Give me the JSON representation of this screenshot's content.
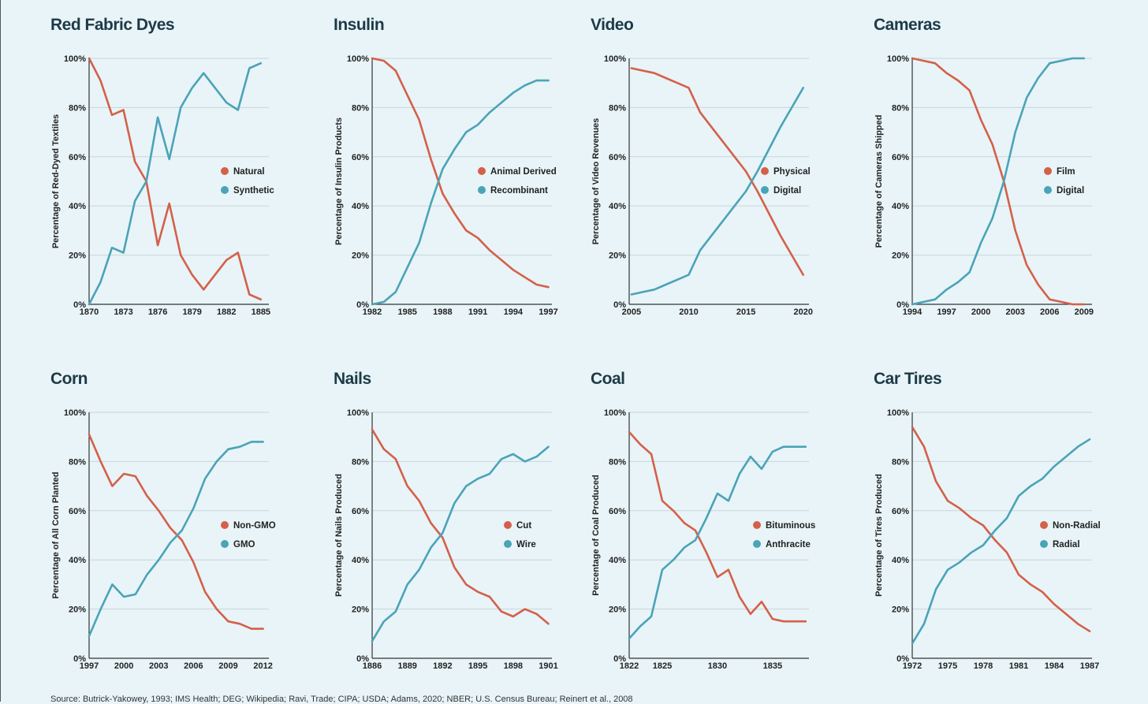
{
  "colors": {
    "series_a": "#d4604a",
    "series_b": "#4ba3b8",
    "grid": "#c9d6da",
    "axis": "#333333"
  },
  "footer": {
    "text": "Source: Butrick-Yakowey, 1993; IMS Health; DEG; Wikipedia; Ravi, Trade; CIPA; USDA; Adams, 2020; NBER; U.S. Census Bureau; Reinert et al., 2008"
  },
  "chart_data": [
    {
      "type": "line",
      "title": "Red Fabric Dyes",
      "ylabel": "Percentage of Red-Dyed Textiles",
      "xlim": [
        1870,
        1885.7
      ],
      "ylim": [
        0,
        100
      ],
      "xticks": [
        1870,
        1873,
        1876,
        1879,
        1882,
        1885
      ],
      "yticks": [
        "0%",
        "20%",
        "40%",
        "60%",
        "80%",
        "100%"
      ],
      "series": [
        {
          "name": "Natural",
          "x": [
            1870,
            1871,
            1872,
            1873,
            1874,
            1875,
            1876,
            1877,
            1878,
            1879,
            1880,
            1881,
            1882,
            1883,
            1884,
            1885
          ],
          "values": [
            100,
            91,
            77,
            79,
            58,
            50,
            24,
            41,
            20,
            12,
            6,
            12,
            18,
            21,
            4,
            2
          ]
        },
        {
          "name": "Synthetic",
          "x": [
            1870,
            1871,
            1872,
            1873,
            1874,
            1875,
            1876,
            1877,
            1878,
            1879,
            1880,
            1881,
            1882,
            1883,
            1884,
            1885
          ],
          "values": [
            0,
            9,
            23,
            21,
            42,
            50,
            76,
            59,
            80,
            88,
            94,
            88,
            82,
            79,
            96,
            98
          ]
        }
      ]
    },
    {
      "type": "line",
      "title": "Insulin",
      "ylabel": "Percentage of Insulin Products",
      "xlim": [
        1982,
        1997.3
      ],
      "ylim": [
        0,
        100
      ],
      "xticks": [
        1982,
        1985,
        1988,
        1991,
        1994,
        1997
      ],
      "yticks": [
        "0%",
        "20%",
        "40%",
        "60%",
        "80%",
        "100%"
      ],
      "series": [
        {
          "name": "Animal Derived",
          "x": [
            1982,
            1983,
            1984,
            1985,
            1986,
            1987,
            1988,
            1989,
            1990,
            1991,
            1992,
            1993,
            1994,
            1995,
            1996,
            1997
          ],
          "values": [
            100,
            99,
            95,
            85,
            75,
            59,
            45,
            37,
            30,
            27,
            22,
            18,
            14,
            11,
            8,
            7
          ]
        },
        {
          "name": "Recombinant",
          "x": [
            1982,
            1983,
            1984,
            1985,
            1986,
            1987,
            1988,
            1989,
            1990,
            1991,
            1992,
            1993,
            1994,
            1995,
            1996,
            1997
          ],
          "values": [
            0,
            1,
            5,
            15,
            25,
            41,
            55,
            63,
            70,
            73,
            78,
            82,
            86,
            89,
            91,
            91
          ]
        }
      ]
    },
    {
      "type": "line",
      "title": "Video",
      "ylabel": "Percentage of Video Revenues",
      "xlim": [
        2004.8,
        2020.5
      ],
      "ylim": [
        0,
        100
      ],
      "xticks": [
        2005,
        2010,
        2015,
        2020
      ],
      "yticks": [
        "0%",
        "20%",
        "40%",
        "60%",
        "80%",
        "100%"
      ],
      "series": [
        {
          "name": "Physical",
          "x": [
            2005,
            2006,
            2007,
            2008,
            2009,
            2010,
            2011,
            2012,
            2013,
            2014,
            2015,
            2016,
            2017,
            2018,
            2019,
            2020
          ],
          "values": [
            96,
            95,
            94,
            92,
            90,
            88,
            78,
            72,
            66,
            60,
            54,
            46,
            37,
            28,
            20,
            12
          ]
        },
        {
          "name": "Digital",
          "x": [
            2005,
            2006,
            2007,
            2008,
            2009,
            2010,
            2011,
            2012,
            2013,
            2014,
            2015,
            2016,
            2017,
            2018,
            2019,
            2020
          ],
          "values": [
            4,
            5,
            6,
            8,
            10,
            12,
            22,
            28,
            34,
            40,
            46,
            54,
            63,
            72,
            80,
            88
          ]
        }
      ]
    },
    {
      "type": "line",
      "title": "Cameras",
      "ylabel": "Percentage of Cameras Shipped",
      "xlim": [
        1994,
        2009.7
      ],
      "ylim": [
        0,
        100
      ],
      "xticks": [
        1994,
        1997,
        2000,
        2003,
        2006,
        2009
      ],
      "yticks": [
        "0%",
        "20%",
        "40%",
        "60%",
        "80%",
        "100%"
      ],
      "series": [
        {
          "name": "Film",
          "x": [
            1994,
            1995,
            1996,
            1997,
            1998,
            1999,
            2000,
            2001,
            2002,
            2003,
            2004,
            2005,
            2006,
            2007,
            2008,
            2009
          ],
          "values": [
            100,
            99,
            98,
            94,
            91,
            87,
            75,
            65,
            50,
            30,
            16,
            8,
            2,
            1,
            0,
            0
          ]
        },
        {
          "name": "Digital",
          "x": [
            1994,
            1995,
            1996,
            1997,
            1998,
            1999,
            2000,
            2001,
            2002,
            2003,
            2004,
            2005,
            2006,
            2007,
            2008,
            2009
          ],
          "values": [
            0,
            1,
            2,
            6,
            9,
            13,
            25,
            35,
            50,
            70,
            84,
            92,
            98,
            99,
            100,
            100
          ]
        }
      ]
    },
    {
      "type": "line",
      "title": "Corn",
      "ylabel": "Percentage of All Corn Planted",
      "xlim": [
        1997,
        2012.5
      ],
      "ylim": [
        0,
        100
      ],
      "xticks": [
        1997,
        2000,
        2003,
        2006,
        2009,
        2012
      ],
      "yticks": [
        "0%",
        "20%",
        "40%",
        "60%",
        "80%",
        "100%"
      ],
      "series": [
        {
          "name": "Non-GMO",
          "x": [
            1997,
            1998,
            1999,
            2000,
            2001,
            2002,
            2003,
            2004,
            2005,
            2006,
            2007,
            2008,
            2009,
            2010,
            2011,
            2012
          ],
          "values": [
            91,
            80,
            70,
            75,
            74,
            66,
            60,
            53,
            48,
            39,
            27,
            20,
            15,
            14,
            12,
            12
          ]
        },
        {
          "name": "GMO",
          "x": [
            1997,
            1998,
            1999,
            2000,
            2001,
            2002,
            2003,
            2004,
            2005,
            2006,
            2007,
            2008,
            2009,
            2010,
            2011,
            2012
          ],
          "values": [
            9,
            20,
            30,
            25,
            26,
            34,
            40,
            47,
            52,
            61,
            73,
            80,
            85,
            86,
            88,
            88
          ]
        }
      ]
    },
    {
      "type": "line",
      "title": "Nails",
      "ylabel": "Percentage of Nails Produced",
      "xlim": [
        1886,
        1901.3
      ],
      "ylim": [
        0,
        100
      ],
      "xticks": [
        1886,
        1889,
        1892,
        1895,
        1898,
        1901
      ],
      "yticks": [
        "0%",
        "20%",
        "40%",
        "60%",
        "80%",
        "100%"
      ],
      "series": [
        {
          "name": "Cut",
          "x": [
            1886,
            1887,
            1888,
            1889,
            1890,
            1891,
            1892,
            1893,
            1894,
            1895,
            1896,
            1897,
            1898,
            1899,
            1900,
            1901
          ],
          "values": [
            93,
            85,
            81,
            70,
            64,
            55,
            49,
            37,
            30,
            27,
            25,
            19,
            17,
            20,
            18,
            14
          ]
        },
        {
          "name": "Wire",
          "x": [
            1886,
            1887,
            1888,
            1889,
            1890,
            1891,
            1892,
            1893,
            1894,
            1895,
            1896,
            1897,
            1898,
            1899,
            1900,
            1901
          ],
          "values": [
            7,
            15,
            19,
            30,
            36,
            45,
            51,
            63,
            70,
            73,
            75,
            81,
            83,
            80,
            82,
            86
          ]
        }
      ]
    },
    {
      "type": "line",
      "title": "Coal",
      "ylabel": "Percentage of Coal Produced",
      "xlim": [
        1822,
        1838.3
      ],
      "ylim": [
        0,
        100
      ],
      "xticks": [
        1822,
        1825,
        1830,
        1835
      ],
      "yticks": [
        "0%",
        "20%",
        "40%",
        "60%",
        "80%",
        "100%"
      ],
      "series": [
        {
          "name": "Bituminous",
          "x": [
            1822,
            1823,
            1824,
            1825,
            1826,
            1827,
            1828,
            1829,
            1830,
            1831,
            1832,
            1833,
            1834,
            1835,
            1836,
            1837,
            1838
          ],
          "values": [
            92,
            87,
            83,
            64,
            60,
            55,
            52,
            43,
            33,
            36,
            25,
            18,
            23,
            16,
            15,
            15,
            15
          ]
        },
        {
          "name": "Anthracite",
          "x": [
            1822,
            1823,
            1824,
            1825,
            1826,
            1827,
            1828,
            1829,
            1830,
            1831,
            1832,
            1833,
            1834,
            1835,
            1836,
            1837,
            1838
          ],
          "values": [
            8,
            13,
            17,
            36,
            40,
            45,
            48,
            57,
            67,
            64,
            75,
            82,
            77,
            84,
            86,
            86,
            86
          ]
        }
      ]
    },
    {
      "type": "line",
      "title": "Car Tires",
      "ylabel": "Percentage of Tires Produced",
      "xlim": [
        1972,
        1987.2
      ],
      "ylim": [
        0,
        100
      ],
      "xticks": [
        1972,
        1975,
        1978,
        1981,
        1984,
        1987
      ],
      "yticks": [
        "0%",
        "20%",
        "40%",
        "60%",
        "80%",
        "100%"
      ],
      "series": [
        {
          "name": "Non-Radial",
          "x": [
            1972,
            1973,
            1974,
            1975,
            1976,
            1977,
            1978,
            1979,
            1980,
            1981,
            1982,
            1983,
            1984,
            1985,
            1986,
            1987
          ],
          "values": [
            94,
            86,
            72,
            64,
            61,
            57,
            54,
            48,
            43,
            34,
            30,
            27,
            22,
            18,
            14,
            11
          ]
        },
        {
          "name": "Radial",
          "x": [
            1972,
            1973,
            1974,
            1975,
            1976,
            1977,
            1978,
            1979,
            1980,
            1981,
            1982,
            1983,
            1984,
            1985,
            1986,
            1987
          ],
          "values": [
            6,
            14,
            28,
            36,
            39,
            43,
            46,
            52,
            57,
            66,
            70,
            73,
            78,
            82,
            86,
            89
          ]
        }
      ]
    }
  ]
}
